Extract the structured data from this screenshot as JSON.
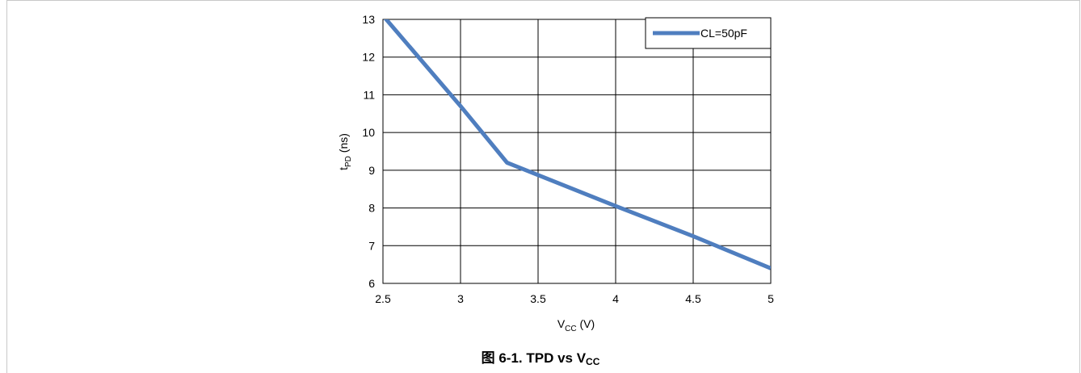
{
  "chart_data": {
    "type": "line",
    "xlabel_main": "V",
    "xlabel_sub": "CC",
    "xlabel_tail": " (V)",
    "ylabel_main": "t",
    "ylabel_sub": "PD",
    "ylabel_tail": " (ns)",
    "xlim": [
      2.5,
      5
    ],
    "ylim": [
      6,
      13
    ],
    "x_ticks": [
      "2.5",
      "3",
      "3.5",
      "4",
      "4.5",
      "5"
    ],
    "y_ticks": [
      "6",
      "7",
      "8",
      "9",
      "10",
      "11",
      "12",
      "13"
    ],
    "grid": true,
    "legend_position": "top-right",
    "series": [
      {
        "name": "CL=50pF",
        "color": "#4f7ebf",
        "x": [
          2.5,
          3.0,
          3.3,
          4.0,
          4.5,
          5.0
        ],
        "y": [
          13.1,
          10.7,
          9.2,
          8.05,
          7.25,
          6.4
        ]
      }
    ]
  },
  "caption": {
    "prefix": "图 6-1. TPD vs V",
    "sub": "CC"
  }
}
